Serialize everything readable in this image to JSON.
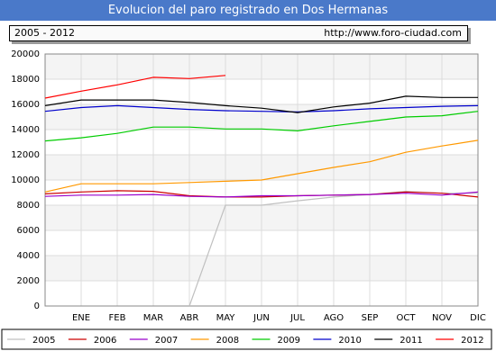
{
  "header": {
    "title": "Evolucion del paro registrado en Dos Hermanas",
    "period": "2005 - 2012",
    "url": "http://www.foro-ciudad.com"
  },
  "chart_data": {
    "type": "line",
    "title": "Evolucion del paro registrado en Dos Hermanas",
    "categories": [
      "",
      "ENE",
      "FEB",
      "MAR",
      "ABR",
      "MAY",
      "JUN",
      "JUL",
      "AGO",
      "SEP",
      "OCT",
      "NOV",
      "DIC"
    ],
    "ylim": [
      0,
      20000
    ],
    "yticks": [
      0,
      2000,
      4000,
      6000,
      8000,
      10000,
      12000,
      14000,
      16000,
      18000,
      20000
    ],
    "grid": true,
    "legend_position": "bottom",
    "series": [
      {
        "name": "2005",
        "color": "#c0c0c0",
        "values": [
          null,
          null,
          null,
          null,
          0,
          8000,
          8000,
          8350,
          8650,
          8850,
          9100,
          8950,
          8950
        ]
      },
      {
        "name": "2006",
        "color": "#cc0000",
        "values": [
          8900,
          9050,
          9150,
          9100,
          8750,
          8650,
          8650,
          8750,
          8800,
          8850,
          9050,
          8950,
          8650
        ]
      },
      {
        "name": "2007",
        "color": "#9900cc",
        "values": [
          8700,
          8800,
          8800,
          8850,
          8700,
          8650,
          8750,
          8750,
          8800,
          8850,
          8950,
          8800,
          9050
        ]
      },
      {
        "name": "2008",
        "color": "#ff9900",
        "values": [
          9050,
          9700,
          9700,
          9700,
          9800,
          9900,
          10000,
          10500,
          11000,
          11450,
          12200,
          12700,
          13150
        ]
      },
      {
        "name": "2009",
        "color": "#00cc00",
        "values": [
          13100,
          13350,
          13700,
          14200,
          14200,
          14050,
          14050,
          13900,
          14300,
          14650,
          15000,
          15100,
          15450
        ]
      },
      {
        "name": "2010",
        "color": "#0000cc",
        "values": [
          15450,
          15750,
          15900,
          15750,
          15600,
          15500,
          15450,
          15400,
          15500,
          15650,
          15750,
          15850,
          15900
        ]
      },
      {
        "name": "2011",
        "color": "#000000",
        "values": [
          15900,
          16350,
          16350,
          16350,
          16150,
          15900,
          15700,
          15350,
          15800,
          16100,
          16650,
          16550,
          16550
        ]
      },
      {
        "name": "2012",
        "color": "#ff0000",
        "values": [
          16500,
          17050,
          17550,
          18150,
          18050,
          18300,
          null,
          null,
          null,
          null,
          null,
          null,
          null
        ]
      }
    ]
  }
}
